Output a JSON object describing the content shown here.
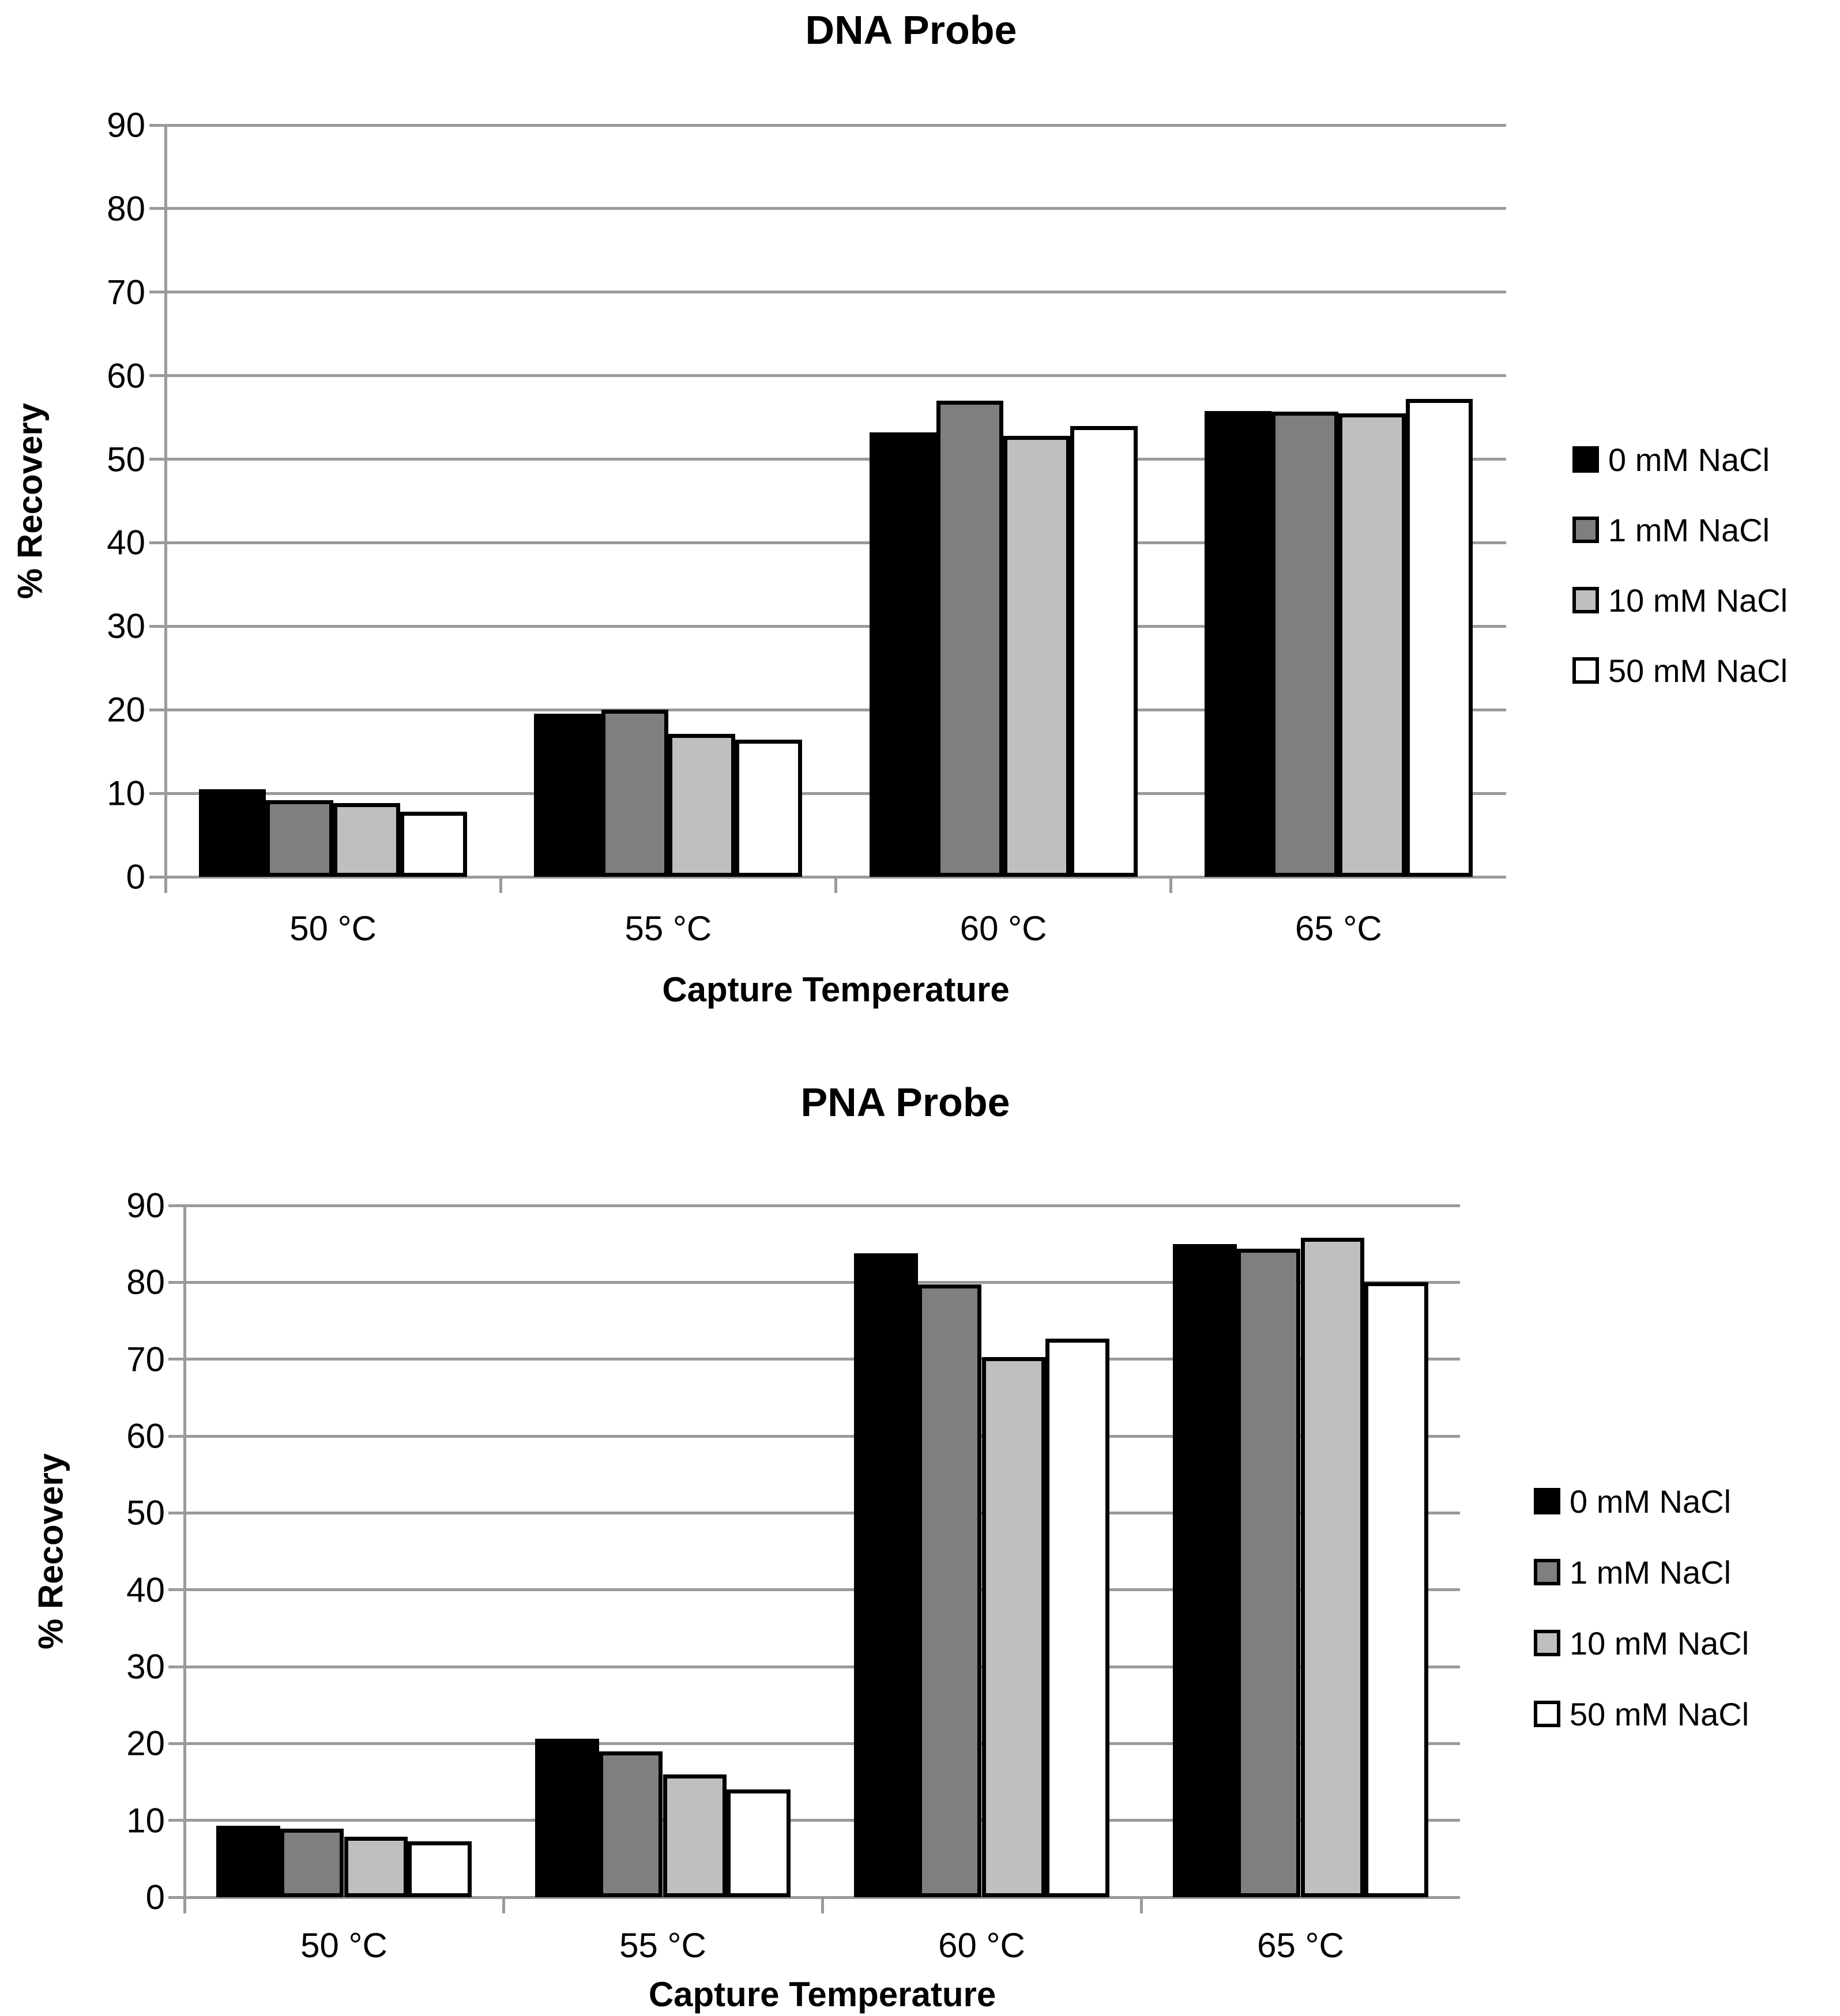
{
  "figure": {
    "background": "#ffffff",
    "text_color": "#000000",
    "axis_color": "#9a9a9a",
    "bar_border_color": "#000000"
  },
  "chart_data": [
    {
      "type": "bar",
      "title": "DNA Probe",
      "ylabel": "% Recovery",
      "xlabel": "Capture Temperature",
      "ylim": [
        0,
        90
      ],
      "ytick_step": 10,
      "yticks": [
        "0",
        "10",
        "20",
        "30",
        "40",
        "50",
        "60",
        "70",
        "80",
        "90"
      ],
      "grid": true,
      "legend_position": "right",
      "categories": [
        "50 °C",
        "55 °C",
        "60 °C",
        "65 °C"
      ],
      "series": [
        {
          "name": "0 mM NaCl",
          "fill": "#000000",
          "values": [
            10.5,
            19.5,
            53.2,
            55.8
          ]
        },
        {
          "name": "1 mM NaCl",
          "fill": "#7f7f7f",
          "values": [
            9.2,
            20.0,
            57.0,
            55.7
          ]
        },
        {
          "name": "10 mM NaCl",
          "fill": "#bfbfbf",
          "values": [
            8.8,
            17.1,
            52.8,
            55.5
          ]
        },
        {
          "name": "50 mM NaCl",
          "fill": "#ffffff",
          "values": [
            7.8,
            16.4,
            54.0,
            57.2
          ]
        }
      ]
    },
    {
      "type": "bar",
      "title": "PNA Probe",
      "ylabel": "% Recovery",
      "xlabel": "Capture Temperature",
      "ylim": [
        0,
        90
      ],
      "ytick_step": 10,
      "yticks": [
        "0",
        "10",
        "20",
        "30",
        "40",
        "50",
        "60",
        "70",
        "80",
        "90"
      ],
      "grid": true,
      "legend_position": "right",
      "categories": [
        "50 °C",
        "55 °C",
        "60 °C",
        "65 °C"
      ],
      "series": [
        {
          "name": "0 mM NaCl",
          "fill": "#000000",
          "values": [
            9.3,
            20.6,
            83.8,
            85.0
          ]
        },
        {
          "name": "1 mM NaCl",
          "fill": "#7f7f7f",
          "values": [
            8.9,
            19.0,
            79.7,
            84.4
          ]
        },
        {
          "name": "10 mM NaCl",
          "fill": "#bfbfbf",
          "values": [
            7.9,
            16.0,
            70.3,
            85.8
          ]
        },
        {
          "name": "50 mM NaCl",
          "fill": "#ffffff",
          "values": [
            7.3,
            14.0,
            72.7,
            80.0
          ]
        }
      ]
    }
  ]
}
